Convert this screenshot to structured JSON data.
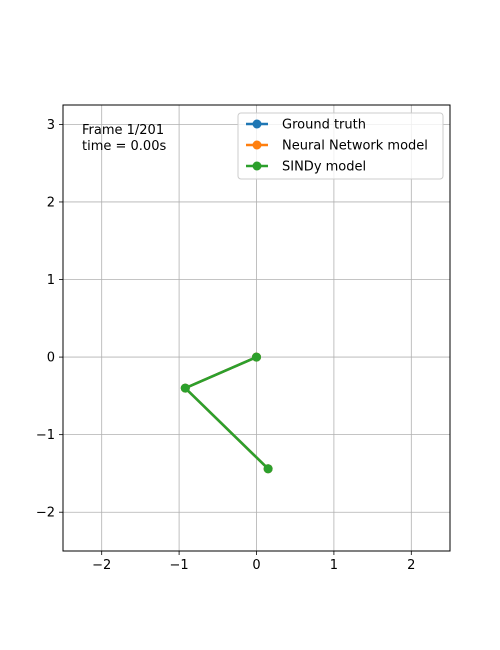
{
  "chart_data": {
    "type": "line",
    "xlim": [
      -2.5,
      2.5
    ],
    "ylim": [
      -2.5,
      3.25
    ],
    "xticks": [
      -2,
      -1,
      0,
      1,
      2
    ],
    "yticks": [
      -2,
      -1,
      0,
      1,
      2,
      3
    ],
    "xtick_labels": [
      "−2",
      "−1",
      "0",
      "1",
      "2"
    ],
    "ytick_labels": [
      "−2",
      "−1",
      "0",
      "1",
      "2",
      "3"
    ],
    "grid": true,
    "annotations": {
      "frame": "Frame 1/201",
      "time": "time = 0.00s"
    },
    "legend": {
      "placement": "top-right"
    },
    "series": [
      {
        "name": "Ground truth",
        "color": "#1f77b4",
        "x": [
          0,
          -0.92,
          0.15
        ],
        "y": [
          0,
          -0.4,
          -1.44
        ]
      },
      {
        "name": "Neural Network model",
        "color": "#ff7f0e",
        "x": [
          0,
          -0.92,
          0.15
        ],
        "y": [
          0,
          -0.4,
          -1.44
        ]
      },
      {
        "name": "SINDy model",
        "color": "#2ca02c",
        "x": [
          0,
          -0.92,
          0.15
        ],
        "y": [
          0,
          -0.4,
          -1.44
        ]
      }
    ]
  }
}
